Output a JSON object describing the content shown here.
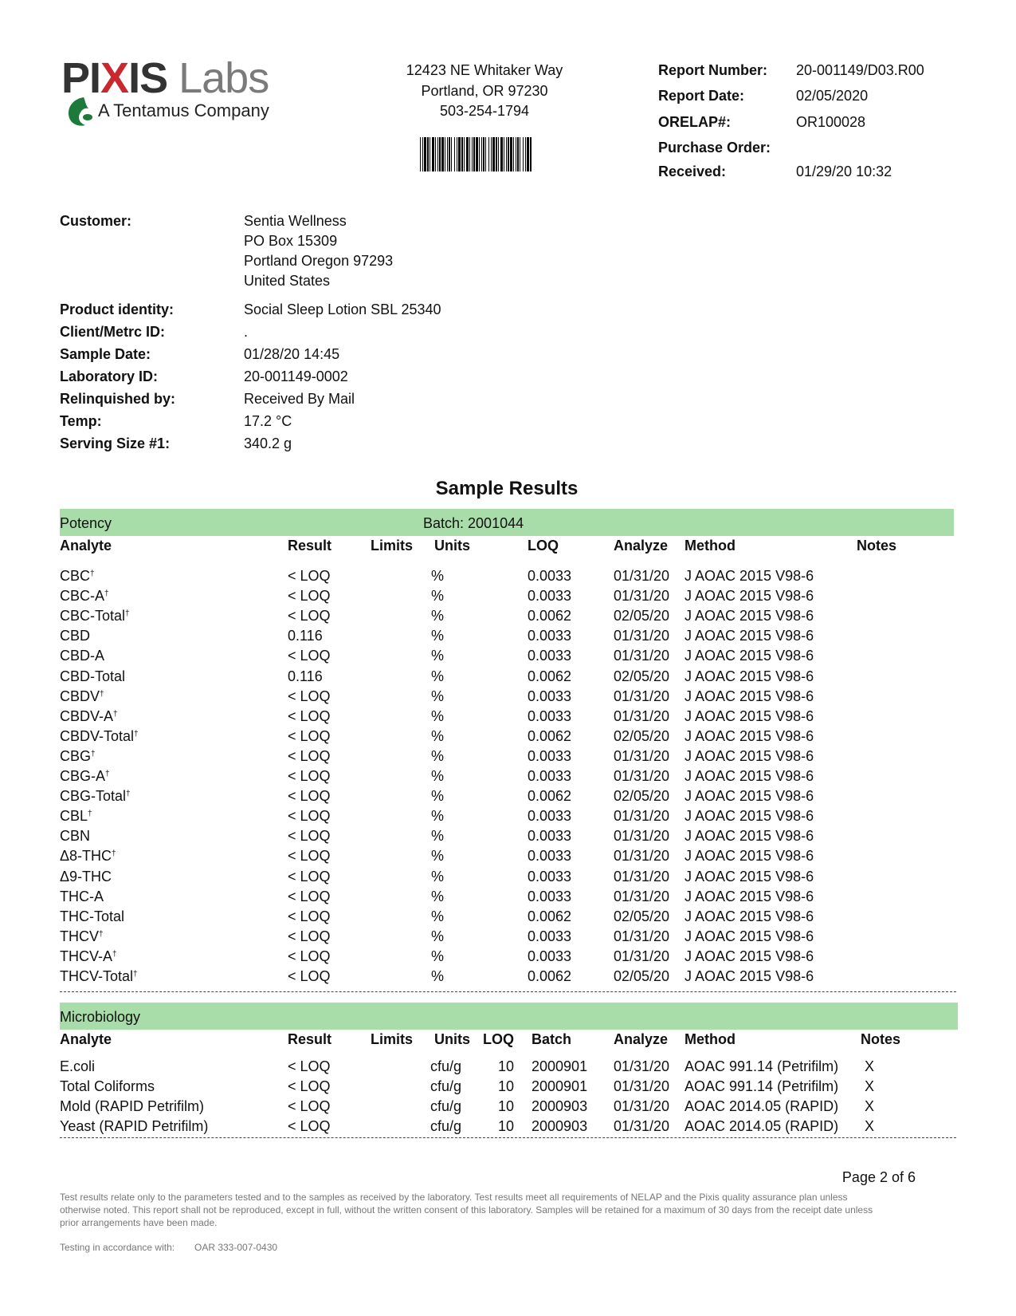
{
  "logo": {
    "name_dark": "PIXIS",
    "name_light": "Labs",
    "tagline": "A Tentamus Company",
    "colors": {
      "dark": "#333333",
      "x_red": "#c8282e",
      "labs_gray": "#7a7a7a",
      "leaf_green": "#1e7a3a"
    }
  },
  "address": {
    "street": "12423 NE Whitaker Way",
    "city": "Portland, OR 97230",
    "phone": "503-254-1794"
  },
  "report": [
    {
      "label": "Report Number:",
      "value": "20-001149/D03.R00"
    },
    {
      "label": "Report Date:",
      "value": "02/05/2020"
    },
    {
      "label": "ORELAP#:",
      "value": "OR100028"
    },
    {
      "label": "Purchase Order:",
      "value": ""
    },
    {
      "label": "Received:",
      "value": "01/29/20  10:32"
    }
  ],
  "customer": {
    "label": "Customer:",
    "lines": [
      "Sentia Wellness",
      "PO Box 15309",
      "Portland Oregon 97293",
      "United States"
    ]
  },
  "sample_info": [
    {
      "label": "Product identity:",
      "value": "Social Sleep Lotion SBL 25340"
    },
    {
      "label": "Client/Metrc ID:",
      "value": "."
    },
    {
      "label": "Sample Date:",
      "value": "01/28/20 14:45"
    },
    {
      "label": "Laboratory ID:",
      "value": "20-001149-0002"
    },
    {
      "label": "Relinquished by:",
      "value": "Received By Mail"
    },
    {
      "label": "Temp:",
      "value": "17.2 °C"
    },
    {
      "label": "Serving Size #1:",
      "value": "340.2 g"
    }
  ],
  "results_title": "Sample Results",
  "potency": {
    "section": "Potency",
    "batch": "Batch: 2001044",
    "headers": {
      "analyte": "Analyte",
      "result": "Result",
      "limits": "Limits",
      "units": "Units",
      "loq": "LOQ",
      "analyze": "Analyze",
      "method": "Method",
      "notes": "Notes"
    },
    "rows": [
      [
        "CBC",
        true,
        "< LOQ",
        "%",
        "0.0033",
        "01/31/20",
        "J AOAC 2015 V98-6"
      ],
      [
        "CBC-A",
        true,
        "< LOQ",
        "%",
        "0.0033",
        "01/31/20",
        "J AOAC 2015 V98-6"
      ],
      [
        "CBC-Total",
        true,
        "< LOQ",
        "%",
        "0.0062",
        "02/05/20",
        "J AOAC 2015 V98-6"
      ],
      [
        "CBD",
        false,
        "0.116",
        "%",
        "0.0033",
        "01/31/20",
        "J AOAC 2015 V98-6"
      ],
      [
        "CBD-A",
        false,
        "< LOQ",
        "%",
        "0.0033",
        "01/31/20",
        "J AOAC 2015 V98-6"
      ],
      [
        "CBD-Total",
        false,
        "0.116",
        "%",
        "0.0062",
        "02/05/20",
        "J AOAC 2015 V98-6"
      ],
      [
        "CBDV",
        true,
        "< LOQ",
        "%",
        "0.0033",
        "01/31/20",
        "J AOAC 2015 V98-6"
      ],
      [
        "CBDV-A",
        true,
        "< LOQ",
        "%",
        "0.0033",
        "01/31/20",
        "J AOAC 2015 V98-6"
      ],
      [
        "CBDV-Total",
        true,
        "< LOQ",
        "%",
        "0.0062",
        "02/05/20",
        "J AOAC 2015 V98-6"
      ],
      [
        "CBG",
        true,
        "< LOQ",
        "%",
        "0.0033",
        "01/31/20",
        "J AOAC 2015 V98-6"
      ],
      [
        "CBG-A",
        true,
        "< LOQ",
        "%",
        "0.0033",
        "01/31/20",
        "J AOAC 2015 V98-6"
      ],
      [
        "CBG-Total",
        true,
        "< LOQ",
        "%",
        "0.0062",
        "02/05/20",
        "J AOAC 2015 V98-6"
      ],
      [
        "CBL",
        true,
        "< LOQ",
        "%",
        "0.0033",
        "01/31/20",
        "J AOAC 2015 V98-6"
      ],
      [
        "CBN",
        false,
        "< LOQ",
        "%",
        "0.0033",
        "01/31/20",
        "J AOAC 2015 V98-6"
      ],
      [
        "Δ8-THC",
        true,
        "< LOQ",
        "%",
        "0.0033",
        "01/31/20",
        "J AOAC 2015 V98-6"
      ],
      [
        "Δ9-THC",
        false,
        "< LOQ",
        "%",
        "0.0033",
        "01/31/20",
        "J AOAC 2015 V98-6"
      ],
      [
        "THC-A",
        false,
        "< LOQ",
        "%",
        "0.0033",
        "01/31/20",
        "J AOAC 2015 V98-6"
      ],
      [
        "THC-Total",
        false,
        "< LOQ",
        "%",
        "0.0062",
        "02/05/20",
        "J AOAC 2015 V98-6"
      ],
      [
        "THCV",
        true,
        "< LOQ",
        "%",
        "0.0033",
        "01/31/20",
        "J AOAC 2015 V98-6"
      ],
      [
        "THCV-A",
        true,
        "< LOQ",
        "%",
        "0.0033",
        "01/31/20",
        "J AOAC 2015 V98-6"
      ],
      [
        "THCV-Total",
        true,
        "< LOQ",
        "%",
        "0.0062",
        "02/05/20",
        "J AOAC 2015 V98-6"
      ]
    ]
  },
  "micro": {
    "section": "Microbiology",
    "headers": {
      "analyte": "Analyte",
      "result": "Result",
      "limits": "Limits",
      "units": "Units",
      "loq": "LOQ",
      "batch": "Batch",
      "analyze": "Analyze",
      "method": "Method",
      "notes": "Notes"
    },
    "rows": [
      [
        "E.coli",
        "< LOQ",
        "cfu/g",
        "10",
        "2000901",
        "01/31/20",
        "AOAC 991.14 (Petrifilm)",
        "X"
      ],
      [
        "Total Coliforms",
        "< LOQ",
        "cfu/g",
        "10",
        "2000901",
        "01/31/20",
        "AOAC 991.14 (Petrifilm)",
        "X"
      ],
      [
        "Mold (RAPID Petrifilm)",
        "< LOQ",
        "cfu/g",
        "10",
        "2000903",
        "01/31/20",
        "AOAC 2014.05 (RAPID)",
        "X"
      ],
      [
        "Yeast (RAPID Petrifilm)",
        "< LOQ",
        "cfu/g",
        "10",
        "2000903",
        "01/31/20",
        "AOAC 2014.05 (RAPID)",
        "X"
      ]
    ]
  },
  "dagger": "†",
  "page": "Page 2 of 6",
  "footer": {
    "disclaimer": [
      "Test results relate only to the parameters tested and to the samples as received by the laboratory. Test results meet all requirements of NELAP and the Pixis quality assurance plan unless",
      "otherwise noted. This report shall not be reproduced, except in full, without the written consent of this laboratory. Samples will be retained for a maximum of 30 days from the receipt date unless",
      "prior arrangements have been made."
    ],
    "testing_label": "Testing in accordance with:",
    "testing_value": "OAR 333-007-0430"
  }
}
